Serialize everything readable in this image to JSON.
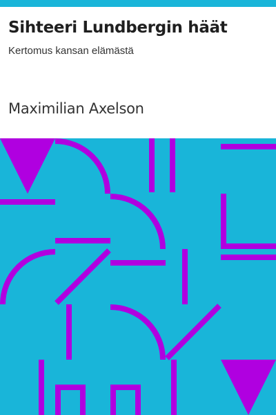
{
  "cover": {
    "title": "Sihteeri Lundbergin häät",
    "subtitle": "Kertomus kansan elämästä",
    "author": "Maximilian Axelson"
  },
  "colors": {
    "accent_bar": "#19b5d9",
    "pattern_background": "#19b5d9",
    "pattern_lines": "#b000e0",
    "text": "#1f1f1f",
    "page_background": "#ffffff"
  }
}
